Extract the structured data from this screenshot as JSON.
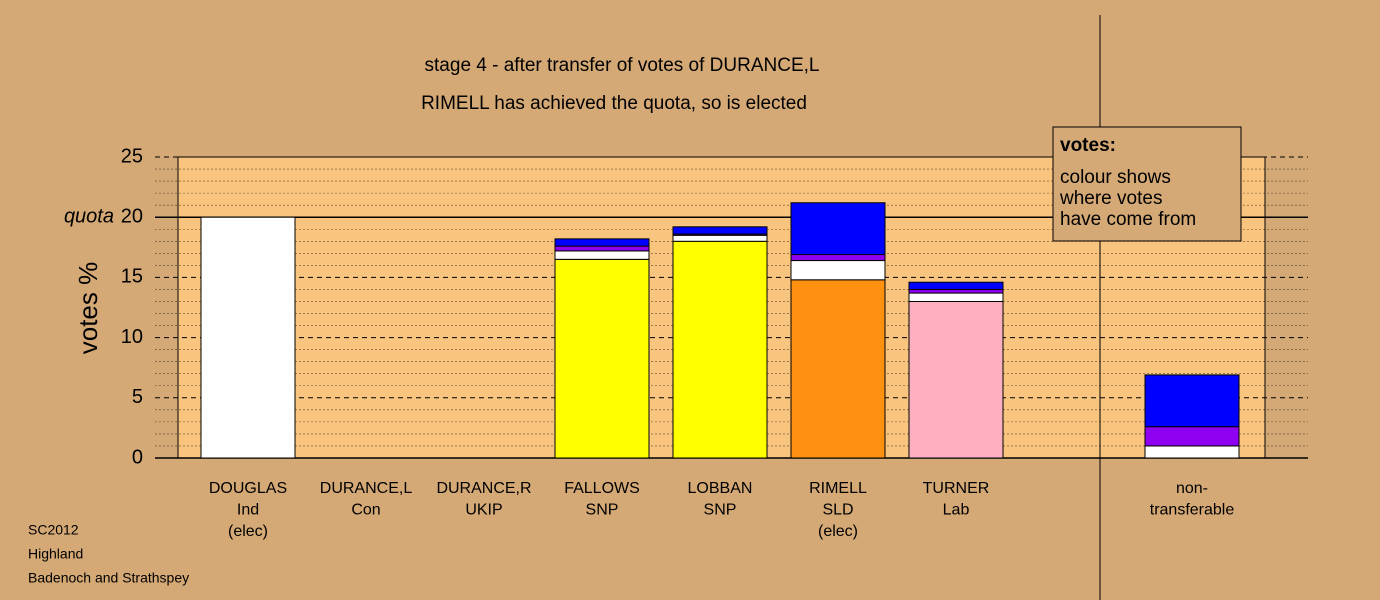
{
  "chart_data": {
    "type": "stacked_bar",
    "title": "stage 4 - after transfer of votes of DURANCE,L",
    "subtitle": "RIMELL has achieved the quota, so is elected",
    "ylabel": "votes %",
    "quota_label": "quota",
    "quota": 20,
    "legend_box": {
      "title": "votes:",
      "lines": [
        "colour shows",
        "where votes",
        "have come from"
      ]
    },
    "footnote": [
      "SC2012",
      "Highland",
      "Badenoch and Strathspey"
    ],
    "categories": [
      [
        "DOUGLAS",
        "Ind",
        "(elec)"
      ],
      [
        "DURANCE,L",
        "Con"
      ],
      [
        "DURANCE,R",
        "UKIP"
      ],
      [
        "FALLOWS",
        "SNP"
      ],
      [
        "LOBBAN",
        "SNP"
      ],
      [
        "RIMELL",
        "SLD",
        "(elec)"
      ],
      [
        "TURNER",
        "Lab"
      ],
      null,
      [
        "non-",
        "transferable"
      ]
    ],
    "series": [
      {
        "colors": [
          "#ffffff",
          "#ffffff",
          "#ffffff",
          "#ffff00",
          "#ffff00",
          "#ff9010",
          "#ffb0c0",
          null,
          "#ffffff"
        ],
        "values": [
          20,
          0,
          0,
          16.5,
          18.0,
          14.8,
          13.0,
          null,
          1.0
        ]
      },
      {
        "color": "#ffffff",
        "values": [
          null,
          null,
          null,
          0.7,
          0.5,
          1.6,
          0.7,
          null,
          null
        ]
      },
      {
        "color": "#9000f0",
        "values": [
          null,
          null,
          null,
          0.4,
          0.1,
          0.5,
          0.3,
          null,
          1.6
        ]
      },
      {
        "color": "#0000ff",
        "values": [
          null,
          null,
          null,
          0.6,
          0.6,
          4.3,
          0.6,
          null,
          4.3
        ]
      }
    ],
    "ylim": [
      0,
      25
    ],
    "yticks": [
      0,
      5,
      10,
      15,
      20,
      25
    ],
    "grid": true,
    "background": "#d4a976",
    "plot_color": "#f8c47e"
  }
}
